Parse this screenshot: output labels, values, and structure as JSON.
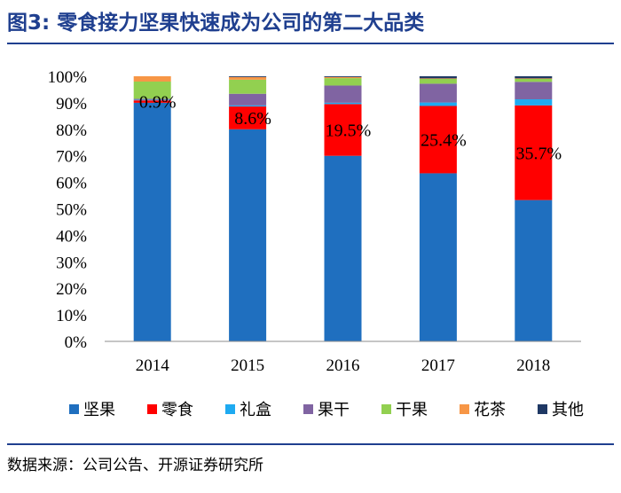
{
  "figure": {
    "title": "图3:  零食接力坚果快速成为公司的第二大品类",
    "source": "数据来源：公司公告、开源证券研究所"
  },
  "chart_data": {
    "type": "bar",
    "stacked": true,
    "percent_stacked": true,
    "title": "",
    "xlabel": "",
    "ylabel": "",
    "ylim": [
      0,
      100
    ],
    "yticks": [
      "0%",
      "10%",
      "20%",
      "30%",
      "40%",
      "50%",
      "60%",
      "70%",
      "80%",
      "90%",
      "100%"
    ],
    "categories": [
      "2014",
      "2015",
      "2016",
      "2017",
      "2018"
    ],
    "series": [
      {
        "name": "坚果",
        "color": "#1f6fbf",
        "values": [
          90.0,
          80.0,
          70.0,
          63.4,
          53.3
        ]
      },
      {
        "name": "零食",
        "color": "#ff0000",
        "values": [
          0.9,
          8.6,
          19.5,
          25.4,
          35.7
        ]
      },
      {
        "name": "礼盒",
        "color": "#1eaaf1",
        "values": [
          0.2,
          0.4,
          0.5,
          1.3,
          2.3
        ]
      },
      {
        "name": "果干",
        "color": "#8064a2",
        "values": [
          0.4,
          4.4,
          6.5,
          7.1,
          6.6
        ]
      },
      {
        "name": "干果",
        "color": "#92d050",
        "values": [
          6.5,
          5.3,
          2.8,
          1.8,
          1.1
        ]
      },
      {
        "name": "花茶",
        "color": "#f79646",
        "values": [
          2.0,
          1.0,
          0.4,
          0.2,
          0.2
        ]
      },
      {
        "name": "其他",
        "color": "#1f3864",
        "values": [
          0.0,
          0.3,
          0.3,
          0.8,
          0.8
        ]
      }
    ],
    "data_labels": {
      "series": "零食",
      "labels": [
        "0.9%",
        "8.6%",
        "19.5%",
        "25.4%",
        "35.7%"
      ]
    },
    "grid": false,
    "legend_position": "bottom"
  }
}
